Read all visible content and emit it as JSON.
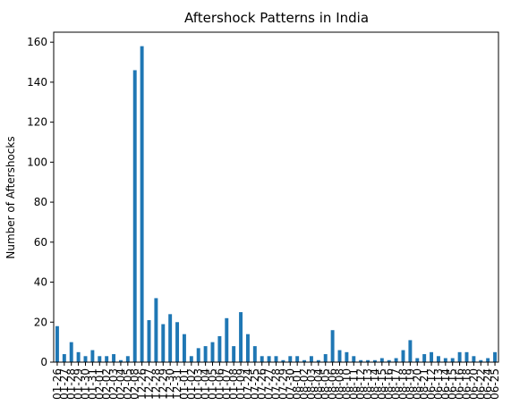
{
  "chart_data": {
    "type": "bar",
    "title": "Aftershock Patterns in India",
    "xlabel": "",
    "ylabel": "Number of Aftershocks",
    "ylim": [
      0,
      165
    ],
    "yticks": [
      0,
      20,
      40,
      60,
      80,
      100,
      120,
      140,
      160
    ],
    "grid": false,
    "legend": "none",
    "bar_color": "#1f77b4",
    "categories": [
      "01-26",
      "01-27",
      "01-28",
      "01-29",
      "01-30",
      "01-31",
      "02-01",
      "02-02",
      "02-03",
      "02-04",
      "02-05",
      "02-08",
      "12-26",
      "12-27",
      "12-28",
      "12-29",
      "12-30",
      "12-31",
      "01-01",
      "01-02",
      "01-03",
      "01-04",
      "01-05",
      "01-06",
      "01-07",
      "01-08",
      "01-09",
      "07-24",
      "07-25",
      "07-26",
      "07-27",
      "07-28",
      "07-29",
      "07-30",
      "08-01",
      "08-02",
      "08-03",
      "08-04",
      "08-05",
      "08-06",
      "08-08",
      "08-10",
      "08-11",
      "08-12",
      "08-13",
      "08-14",
      "08-15",
      "08-16",
      "08-17",
      "08-18",
      "08-19",
      "08-20",
      "08-21",
      "06-12",
      "06-13",
      "06-14",
      "06-15",
      "06-16",
      "06-18",
      "06-20",
      "06-22",
      "06-24",
      "06-25"
    ],
    "values": [
      18,
      4,
      10,
      5,
      3,
      6,
      3,
      3,
      4,
      1,
      3,
      146,
      158,
      21,
      32,
      19,
      24,
      20,
      14,
      3,
      7,
      8,
      10,
      13,
      22,
      8,
      25,
      14,
      8,
      3,
      3,
      3,
      1,
      3,
      3,
      1,
      3,
      1,
      4,
      16,
      6,
      5,
      3,
      1,
      1,
      1,
      2,
      1,
      2,
      6,
      11,
      2,
      4,
      5,
      3,
      2,
      2,
      5,
      5,
      3,
      1,
      2,
      5
    ]
  }
}
